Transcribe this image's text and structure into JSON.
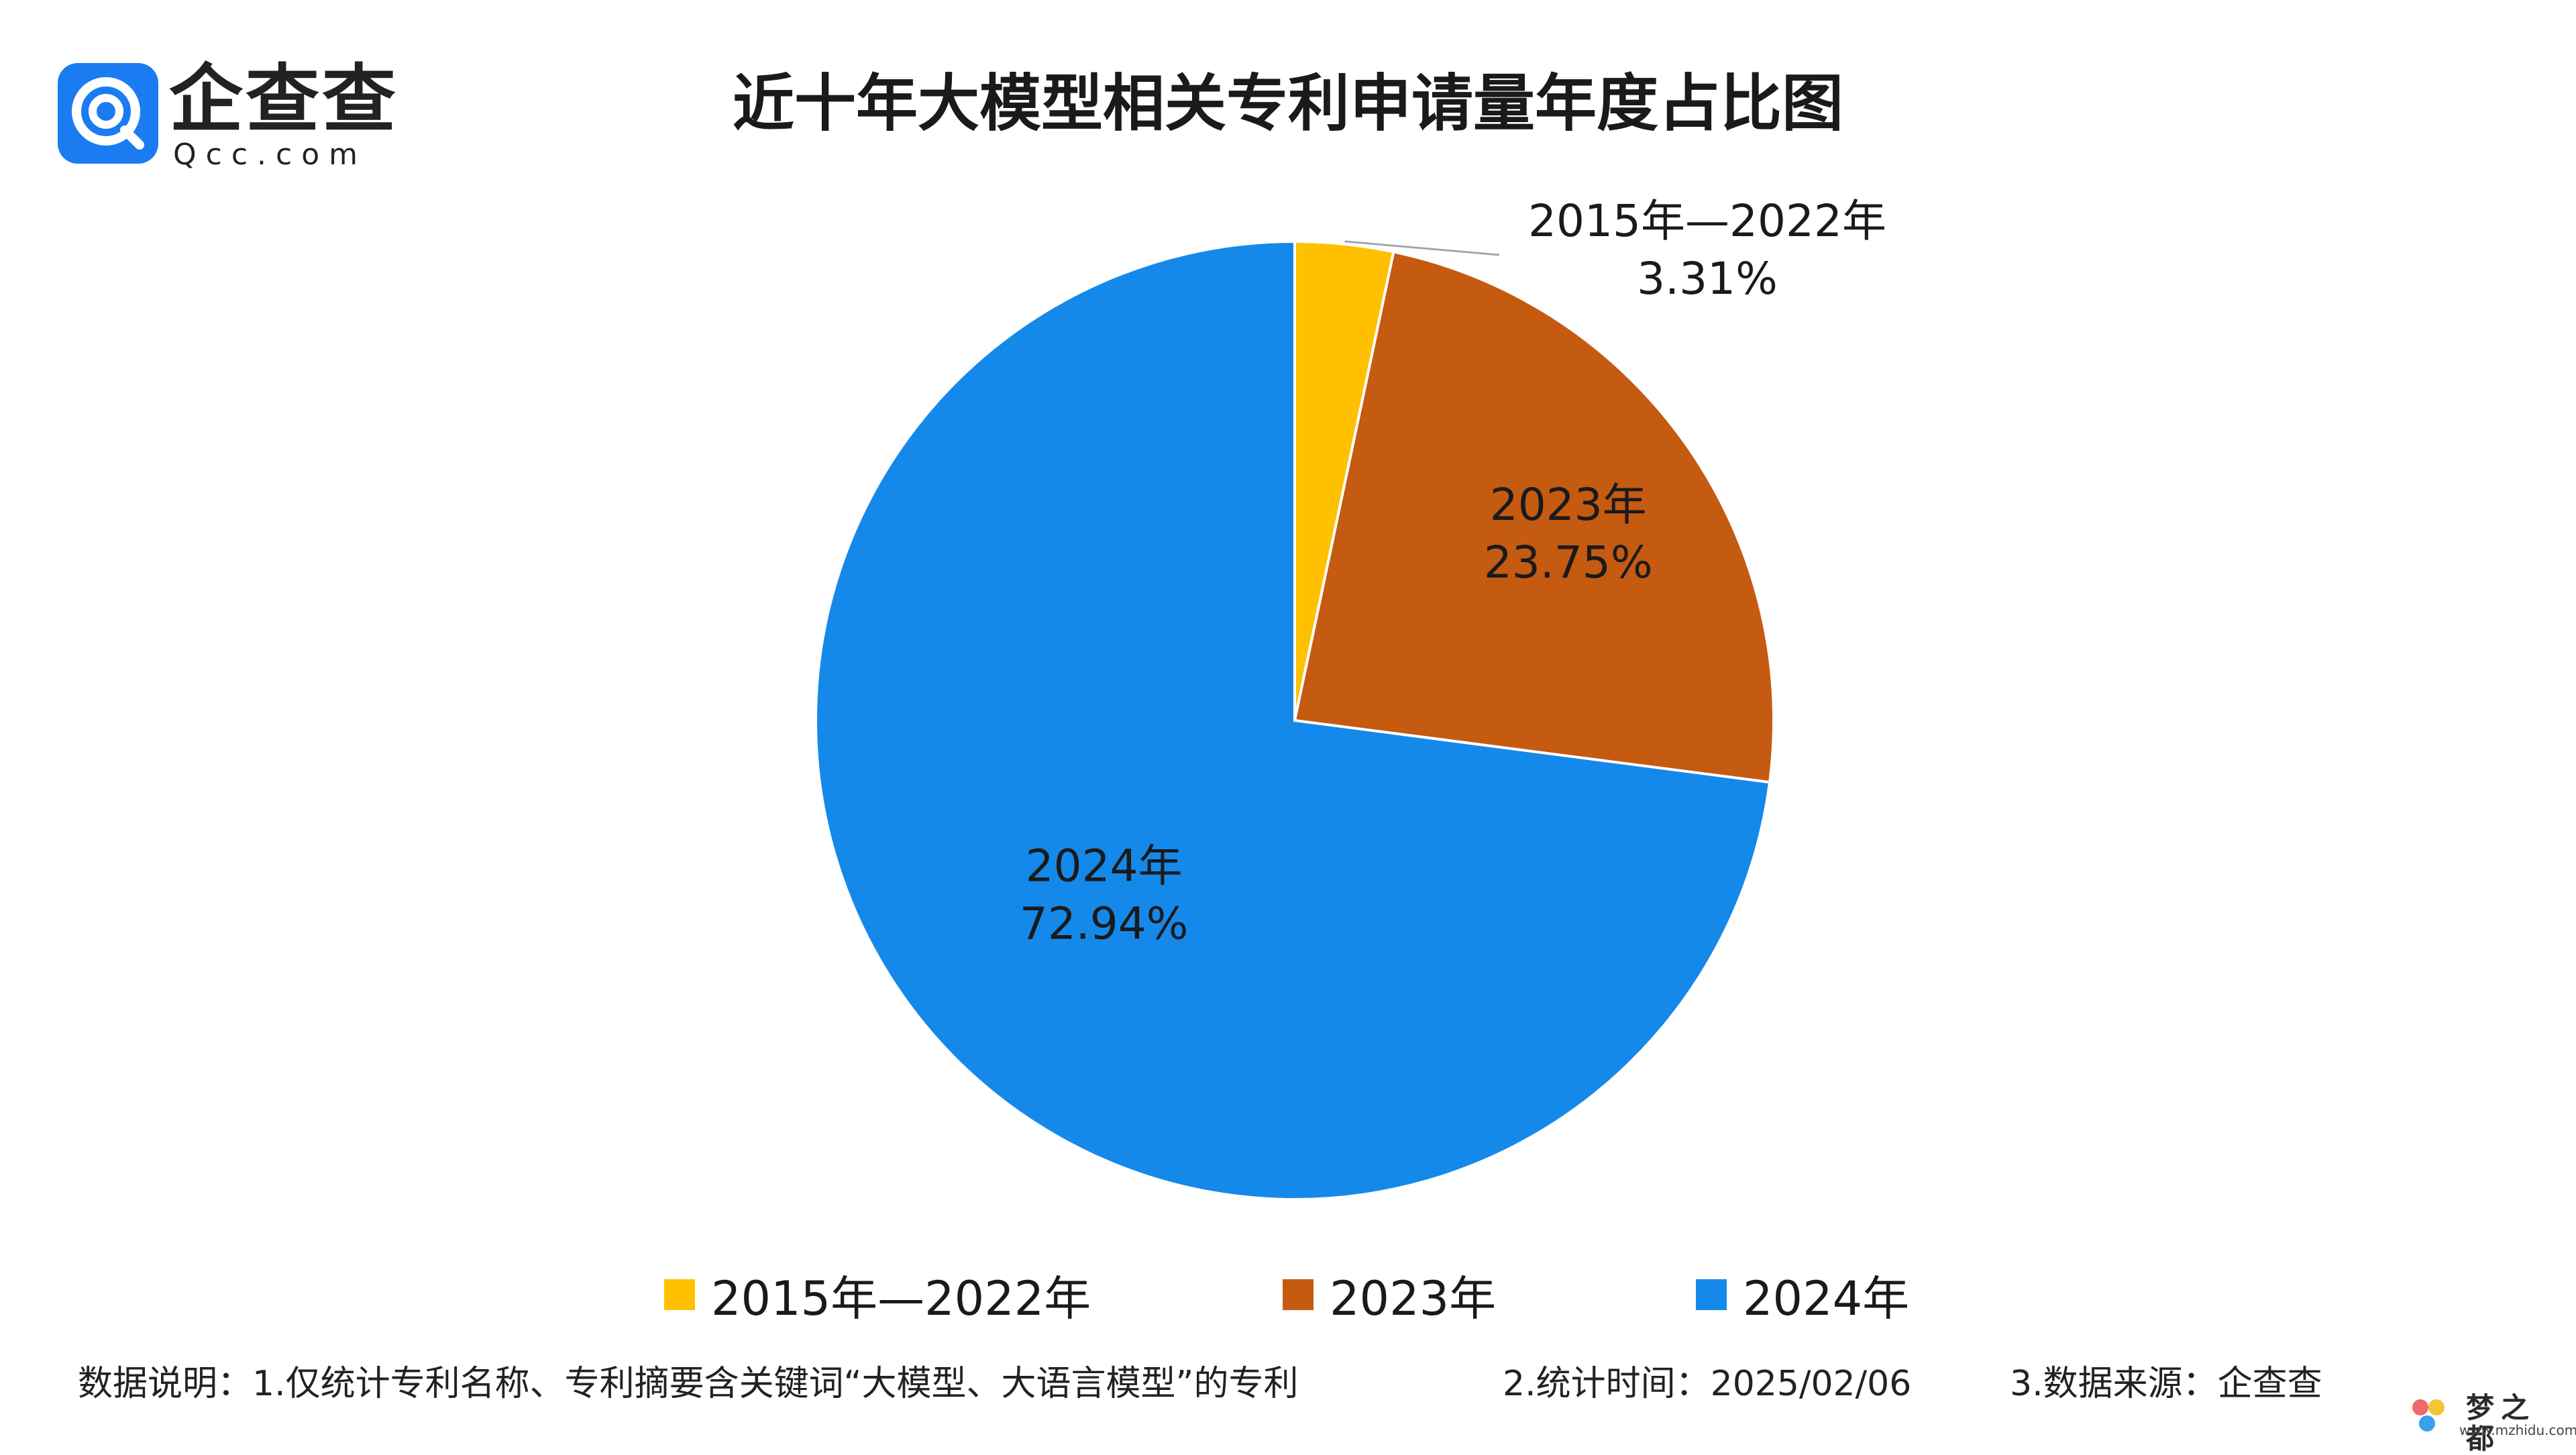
{
  "logo": {
    "cn_text": "企查查",
    "en_text": "Qcc.com",
    "icon": "qcc-logo-icon",
    "color": "#1b7cf2"
  },
  "title": "近十年大模型相关专利申请量年度占比图",
  "chart_data": {
    "type": "pie",
    "title": "近十年大模型相关专利申请量年度占比图",
    "start": "12 o'clock",
    "direction": "clockwise",
    "slices": [
      {
        "label": "2015年—2022年",
        "value": 3.31,
        "display": "3.31%",
        "color": "#ffc000"
      },
      {
        "label": "2023年",
        "value": 23.75,
        "display": "23.75%",
        "color": "#c55a11"
      },
      {
        "label": "2024年",
        "value": 72.94,
        "display": "72.94%",
        "color": "#1589ea"
      }
    ],
    "legend": {
      "placement": "bottom",
      "entries": [
        "2015年—2022年",
        "2023年",
        "2024年"
      ]
    }
  },
  "footnote": {
    "note1": "数据说明：1.仅统计专利名称、专利摘要含关键词“大模型、大语言模型”的专利",
    "note2": "2.统计时间：2025/02/06",
    "note3": "3.数据来源：企查查"
  },
  "watermark": {
    "text": "梦之都",
    "url": "www.mzhidu.com"
  }
}
